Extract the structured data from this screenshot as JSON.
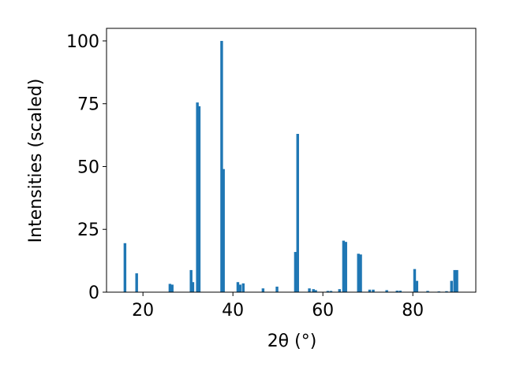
{
  "chart_data": {
    "type": "bar",
    "x_label": "2θ (°)",
    "y_label": "Intensities (scaled)",
    "color": "#1f77b4",
    "x": [
      16.0,
      18.6,
      26.0,
      26.5,
      30.7,
      31.1,
      32.1,
      32.5,
      37.5,
      37.9,
      41.1,
      41.6,
      42.3,
      46.7,
      49.8,
      53.9,
      54.4,
      57.0,
      57.9,
      58.4,
      61.1,
      61.8,
      63.7,
      64.6,
      65.1,
      67.9,
      68.4,
      70.4,
      71.2,
      74.2,
      76.5,
      77.2,
      80.4,
      80.9,
      83.3,
      85.8,
      87.5,
      88.6,
      89.3,
      89.8
    ],
    "values": [
      19.5,
      7.5,
      3.3,
      3.0,
      8.8,
      4.0,
      75.5,
      74.0,
      100,
      49.0,
      4.0,
      3.0,
      3.5,
      1.5,
      2.2,
      16.0,
      63.0,
      1.5,
      1.2,
      0.8,
      0.5,
      0.5,
      1.2,
      20.5,
      20.0,
      15.3,
      15.0,
      1.0,
      1.0,
      0.8,
      0.6,
      0.6,
      9.2,
      4.5,
      0.5,
      0.3,
      0.4,
      4.5,
      8.8,
      8.8
    ],
    "xlim": [
      11.9,
      94.0
    ],
    "ylim": [
      0,
      105
    ],
    "xticks": [
      20,
      40,
      60,
      80
    ],
    "yticks": [
      0,
      25,
      50,
      75,
      100
    ]
  }
}
